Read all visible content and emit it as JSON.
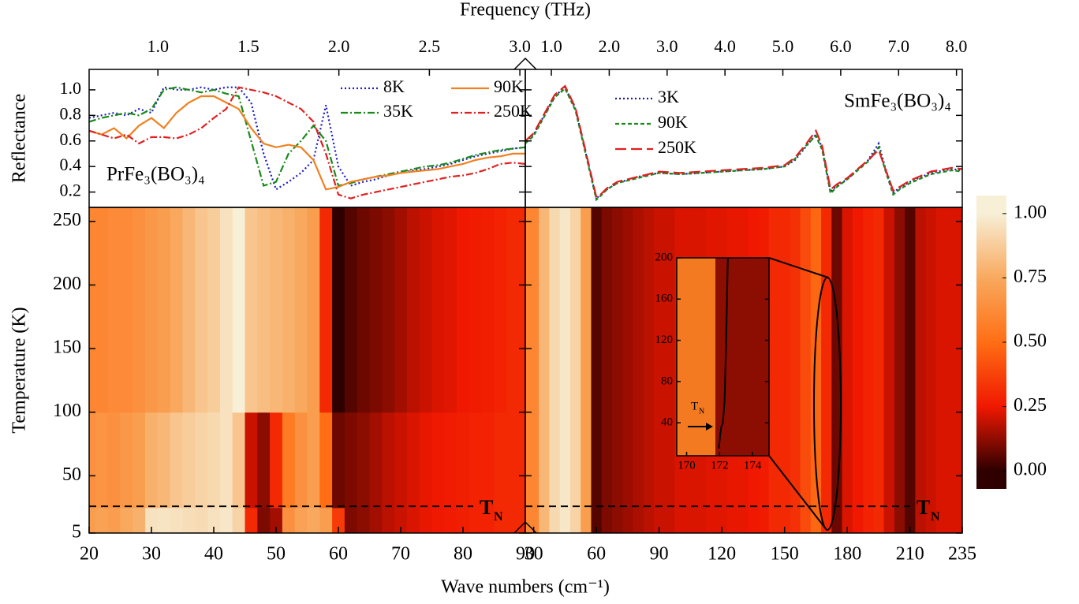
{
  "chart_data": [
    {
      "type": "line",
      "x2label": "Frequency (THz)",
      "ylabel": "Reflectance",
      "annotation": "PrFe₃(BO₃)₄",
      "x": [
        20,
        22,
        24,
        26,
        28,
        30,
        32,
        34,
        36,
        38,
        40,
        42,
        44,
        46,
        48,
        50,
        52,
        54,
        56,
        58,
        60,
        62,
        64,
        66,
        68,
        70,
        72,
        74,
        76,
        78,
        80,
        82,
        84,
        86,
        88,
        90
      ],
      "xlim": [
        20,
        90
      ],
      "x2lim": [
        0.62,
        3.03
      ],
      "x2ticks": [
        {
          "value": 1.0,
          "label": "1.0"
        },
        {
          "value": 1.5,
          "label": "1.5"
        },
        {
          "value": 2.0,
          "label": "2.0"
        },
        {
          "value": 2.5,
          "label": "2.5"
        },
        {
          "value": 3.0,
          "label": "3.0"
        }
      ],
      "ylim": [
        0.08,
        1.16
      ],
      "yticks": [
        {
          "value": 0.2,
          "label": "0.2"
        },
        {
          "value": 0.4,
          "label": "0.4"
        },
        {
          "value": 0.6,
          "label": "0.6"
        },
        {
          "value": 0.8,
          "label": "0.8"
        },
        {
          "value": 1.0,
          "label": "1.0"
        }
      ],
      "series": [
        {
          "name": "8K",
          "color": "#1c1cc0",
          "dash": "dot",
          "values": [
            0.78,
            0.8,
            0.82,
            0.8,
            0.85,
            0.82,
            1.02,
            1.0,
            1.0,
            1.02,
            1.0,
            1.02,
            1.02,
            0.9,
            0.5,
            0.22,
            0.28,
            0.35,
            0.45,
            0.88,
            0.4,
            0.25,
            0.28,
            0.3,
            0.33,
            0.35,
            0.37,
            0.38,
            0.4,
            0.42,
            0.45,
            0.48,
            0.5,
            0.52,
            0.54,
            0.55
          ]
        },
        {
          "name": "35K",
          "color": "#1a8a1a",
          "dash": "dashdot",
          "values": [
            0.75,
            0.78,
            0.8,
            0.82,
            0.8,
            0.85,
            1.0,
            1.02,
            1.0,
            0.98,
            1.0,
            0.97,
            0.95,
            0.6,
            0.25,
            0.28,
            0.5,
            0.6,
            0.72,
            0.6,
            0.25,
            0.27,
            0.3,
            0.32,
            0.34,
            0.36,
            0.38,
            0.4,
            0.41,
            0.43,
            0.46,
            0.49,
            0.51,
            0.53,
            0.54,
            0.55
          ]
        },
        {
          "name": "90K",
          "color": "#f08020",
          "dash": "solid",
          "values": [
            0.68,
            0.65,
            0.7,
            0.62,
            0.72,
            0.78,
            0.7,
            0.82,
            0.9,
            0.95,
            0.95,
            0.9,
            0.85,
            0.7,
            0.58,
            0.55,
            0.57,
            0.55,
            0.45,
            0.22,
            0.24,
            0.28,
            0.3,
            0.32,
            0.33,
            0.35,
            0.36,
            0.37,
            0.38,
            0.4,
            0.42,
            0.45,
            0.47,
            0.48,
            0.5,
            0.5
          ]
        },
        {
          "name": "250K",
          "color": "#e02020",
          "dash": "dashdot",
          "values": [
            0.68,
            0.65,
            0.62,
            0.65,
            0.58,
            0.63,
            0.63,
            0.62,
            0.65,
            0.7,
            0.78,
            0.85,
            1.02,
            1.0,
            0.98,
            0.95,
            0.9,
            0.85,
            0.75,
            0.5,
            0.18,
            0.15,
            0.18,
            0.2,
            0.22,
            0.24,
            0.26,
            0.28,
            0.3,
            0.32,
            0.33,
            0.35,
            0.38,
            0.42,
            0.43,
            0.42
          ]
        }
      ]
    },
    {
      "type": "line",
      "annotation": "SmFe₃(BO₃)₄",
      "x": [
        26,
        30,
        35,
        40,
        45,
        50,
        55,
        60,
        62,
        65,
        70,
        80,
        90,
        100,
        110,
        120,
        130,
        140,
        150,
        155,
        160,
        165,
        168,
        172,
        175,
        180,
        185,
        190,
        195,
        198,
        202,
        205,
        210,
        220,
        230,
        235
      ],
      "xlim": [
        26,
        235
      ],
      "x2lim": [
        0.55,
        8.1
      ],
      "x2ticks": [
        {
          "value": 1.0,
          "label": "1.0"
        },
        {
          "value": 2.0,
          "label": "2.0"
        },
        {
          "value": 3.0,
          "label": "3.0"
        },
        {
          "value": 4.0,
          "label": "4.0"
        },
        {
          "value": 5.0,
          "label": "5.0"
        },
        {
          "value": 6.0,
          "label": "6.0"
        },
        {
          "value": 7.0,
          "label": "7.0"
        },
        {
          "value": 8.0,
          "label": "8.0"
        }
      ],
      "ylim": [
        0.08,
        1.16
      ],
      "yticks": [
        0.2,
        0.4,
        0.6,
        0.8,
        1.0
      ],
      "series": [
        {
          "name": "3K",
          "color": "#1a1aaa",
          "dash": "dot",
          "values": [
            0.6,
            0.65,
            0.8,
            0.95,
            1.02,
            0.85,
            0.5,
            0.15,
            0.18,
            0.22,
            0.27,
            0.32,
            0.35,
            0.34,
            0.35,
            0.36,
            0.37,
            0.38,
            0.4,
            0.45,
            0.55,
            0.65,
            0.55,
            0.2,
            0.25,
            0.3,
            0.38,
            0.45,
            0.58,
            0.4,
            0.2,
            0.23,
            0.28,
            0.35,
            0.38,
            0.37
          ]
        },
        {
          "name": "90K",
          "color": "#1a8a1a",
          "dash": "dash",
          "values": [
            0.58,
            0.64,
            0.79,
            0.94,
            1.01,
            0.84,
            0.49,
            0.14,
            0.17,
            0.22,
            0.27,
            0.31,
            0.35,
            0.34,
            0.35,
            0.36,
            0.37,
            0.38,
            0.4,
            0.46,
            0.56,
            0.64,
            0.53,
            0.19,
            0.24,
            0.3,
            0.37,
            0.44,
            0.55,
            0.38,
            0.18,
            0.22,
            0.27,
            0.34,
            0.37,
            0.36
          ]
        },
        {
          "name": "250K",
          "color": "#e02020",
          "dash": "longdash",
          "values": [
            0.6,
            0.66,
            0.81,
            0.96,
            1.03,
            0.86,
            0.51,
            0.16,
            0.18,
            0.23,
            0.28,
            0.32,
            0.36,
            0.35,
            0.36,
            0.37,
            0.38,
            0.39,
            0.41,
            0.47,
            0.57,
            0.68,
            0.56,
            0.22,
            0.26,
            0.31,
            0.38,
            0.45,
            0.53,
            0.39,
            0.21,
            0.24,
            0.29,
            0.36,
            0.39,
            0.38
          ]
        }
      ]
    },
    {
      "type": "heatmap",
      "xlabel": "Wave numbers (cm⁻¹)",
      "ylabel": "Temperature (K)",
      "x": [
        20,
        22,
        24,
        26,
        28,
        30,
        32,
        34,
        36,
        38,
        40,
        42,
        44,
        46,
        48,
        50,
        52,
        54,
        56,
        58,
        60,
        62,
        64,
        66,
        68,
        70,
        72,
        74,
        76,
        78,
        80,
        82,
        84,
        86,
        88,
        90
      ],
      "ybins": [
        5,
        25,
        100,
        261
      ],
      "z": [
        [
          0.7,
          0.72,
          0.7,
          0.75,
          0.78,
          0.95,
          0.96,
          0.95,
          0.94,
          0.93,
          0.95,
          0.97,
          0.9,
          0.3,
          0.1,
          0.15,
          0.65,
          0.72,
          0.75,
          0.7,
          0.35,
          0.1,
          0.12,
          0.15,
          0.18,
          0.2,
          0.22,
          0.24,
          0.25,
          0.26,
          0.27,
          0.28,
          0.28,
          0.3,
          0.3,
          0.3
        ],
        [
          0.65,
          0.66,
          0.65,
          0.68,
          0.7,
          0.78,
          0.8,
          0.85,
          0.88,
          0.9,
          0.92,
          0.95,
          0.85,
          0.2,
          0.12,
          0.3,
          0.55,
          0.65,
          0.7,
          0.5,
          0.08,
          0.1,
          0.12,
          0.15,
          0.18,
          0.2,
          0.22,
          0.24,
          0.25,
          0.26,
          0.27,
          0.28,
          0.28,
          0.3,
          0.3,
          0.3
        ],
        [
          0.6,
          0.6,
          0.62,
          0.62,
          0.65,
          0.68,
          0.7,
          0.75,
          0.8,
          0.85,
          0.88,
          0.95,
          1.0,
          0.85,
          0.82,
          0.8,
          0.78,
          0.75,
          0.7,
          0.3,
          0.0,
          0.05,
          0.08,
          0.1,
          0.12,
          0.15,
          0.18,
          0.2,
          0.22,
          0.23,
          0.25,
          0.26,
          0.27,
          0.28,
          0.3,
          0.3
        ]
      ],
      "xlim": [
        20,
        90
      ],
      "xticks": [
        20,
        30,
        40,
        50,
        60,
        70,
        80,
        90
      ],
      "ylim": [
        5,
        261
      ],
      "yticks": [
        5,
        50,
        100,
        150,
        200,
        250
      ],
      "hline": 26,
      "annotation": {
        "text": "T",
        "sub": "N"
      },
      "colorscale": [
        [
          0,
          "#2e0000"
        ],
        [
          0.25,
          "#f01800"
        ],
        [
          0.5,
          "#ff6e14"
        ],
        [
          0.75,
          "#f8a95e"
        ],
        [
          1,
          "#f7efd6"
        ]
      ]
    },
    {
      "type": "heatmap",
      "x": [
        30,
        35,
        40,
        45,
        50,
        55,
        60,
        65,
        70,
        75,
        80,
        85,
        90,
        95,
        100,
        105,
        110,
        115,
        120,
        125,
        130,
        135,
        140,
        145,
        150,
        155,
        160,
        165,
        170,
        175,
        180,
        185,
        190,
        195,
        200,
        205,
        210,
        215,
        220,
        225,
        230,
        235
      ],
      "ybins": [
        5,
        261
      ],
      "z": [
        [
          0.6,
          0.8,
          0.92,
          0.97,
          0.9,
          0.7,
          0.05,
          0.1,
          0.12,
          0.14,
          0.16,
          0.18,
          0.2,
          0.2,
          0.22,
          0.22,
          0.22,
          0.23,
          0.23,
          0.24,
          0.24,
          0.25,
          0.26,
          0.3,
          0.3,
          0.32,
          0.4,
          0.48,
          0.3,
          0.08,
          0.22,
          0.25,
          0.28,
          0.3,
          0.2,
          0.12,
          0.05,
          0.18,
          0.2,
          0.22,
          0.22,
          0.22
        ]
      ],
      "xlim": [
        26,
        235
      ],
      "xticks": [
        30,
        60,
        90,
        120,
        150,
        180,
        210,
        235
      ],
      "ylim": [
        5,
        261
      ],
      "yticks": [
        5,
        50,
        100,
        150,
        200,
        250
      ],
      "hline": 26,
      "annotation": {
        "text": "T",
        "sub": "N"
      },
      "colorscale": [
        [
          0,
          "#2e0000"
        ],
        [
          0.25,
          "#f01800"
        ],
        [
          0.5,
          "#ff6e14"
        ],
        [
          0.75,
          "#f8a95e"
        ],
        [
          1,
          "#f7efd6"
        ]
      ],
      "colorbar": {
        "clim": [
          -0.07,
          1.07
        ],
        "ticks": [
          {
            "value": 0,
            "label": "0.00"
          },
          {
            "value": 0.25,
            "label": "0.25"
          },
          {
            "value": 0.5,
            "label": "0.50"
          },
          {
            "value": 0.75,
            "label": "0.75"
          },
          {
            "value": 1,
            "label": "1.00"
          }
        ]
      }
    },
    {
      "type": "line",
      "annotation": {
        "text": "T",
        "sub": "N"
      },
      "x": [
        171.95,
        172.0,
        172.05,
        172.1,
        172.2,
        172.3,
        172.35,
        172.4,
        172.45,
        172.5
      ],
      "xlim": [
        169.4,
        175.0
      ],
      "xticks": [
        170,
        172,
        174
      ],
      "ylim": [
        8,
        200
      ],
      "yticks": [
        40,
        80,
        120,
        160,
        200
      ],
      "series": [
        {
          "color": "#000000",
          "dash": "solid",
          "values": [
            15,
            22,
            30,
            36,
            40,
            60,
            90,
            120,
            160,
            200
          ]
        }
      ]
    }
  ]
}
